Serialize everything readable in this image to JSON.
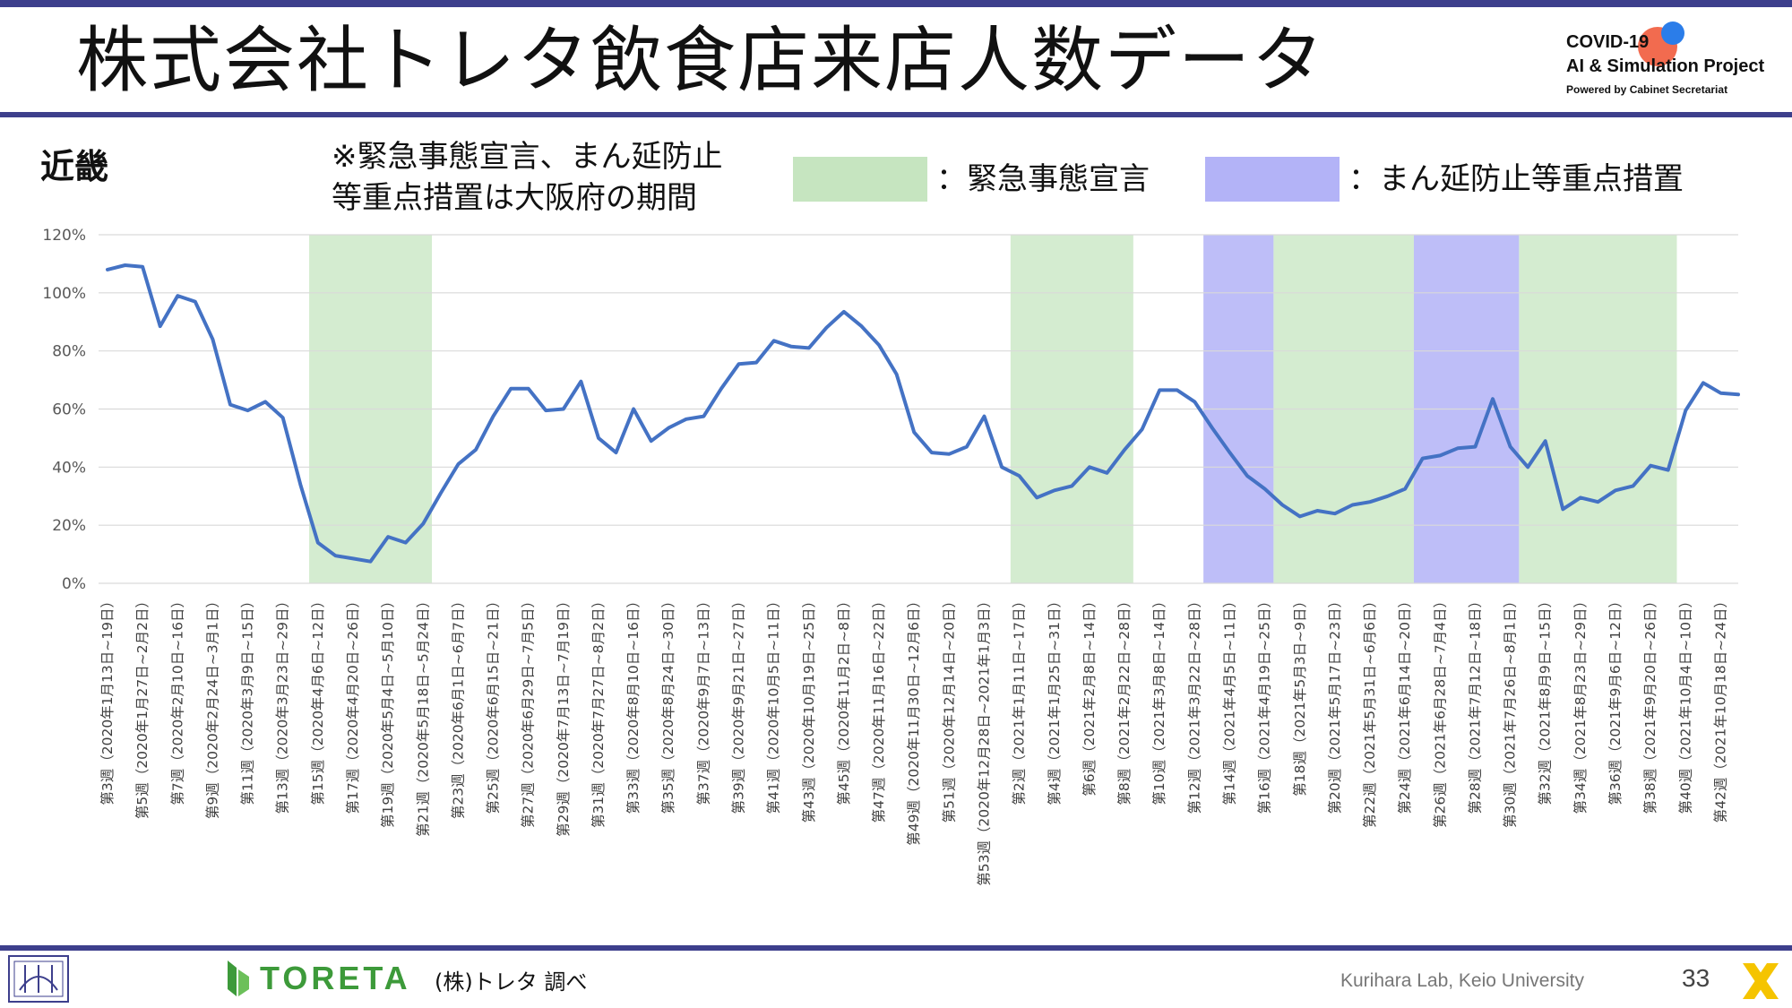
{
  "header": {
    "title": "株式会社トレタ飲食店来店人数データ",
    "logo_line1": "COVID-19",
    "logo_line2": "AI & Simulation Project",
    "logo_line3": "Powered by Cabinet Secretariat"
  },
  "region": "近畿",
  "note_line1": "※緊急事態宣言、まん延防止",
  "note_line2": "等重点措置は大阪府の期間",
  "legend": [
    {
      "label": "：緊急事態宣言",
      "color": "#c6e5c0"
    },
    {
      "label": "：まん延防止等重点措置",
      "color": "#b3b3f7"
    }
  ],
  "footer": {
    "brand": "TORETA",
    "source": "(株)トレタ 調べ",
    "lab": "Kurihara Lab, Keio University",
    "page": "33"
  },
  "colors": {
    "band": "#3d3f8c",
    "line": "#4472c4",
    "emergency": "#c6e5c0",
    "priority": "#b3b3f7"
  },
  "chart_data": {
    "type": "line",
    "ylim": [
      0,
      120
    ],
    "y_ticks": [
      "0%",
      "20%",
      "40%",
      "60%",
      "80%",
      "100%",
      "120%"
    ],
    "grid": true,
    "x_tick_labels": [
      "第3週（2020年1月13日~19日）",
      "第5週（2020年1月27日~2月2日）",
      "第7週（2020年2月10日~16日）",
      "第9週（2020年2月24日~3月1日）",
      "第11週（2020年3月9日~15日）",
      "第13週（2020年3月23日~29日）",
      "第15週（2020年4月6日~12日）",
      "第17週（2020年4月20日~26日）",
      "第19週（2020年5月4日~5月10日）",
      "第21週（2020年5月18日~5月24日）",
      "第23週（2020年6月1日~6月7日）",
      "第25週（2020年6月15日~21日）",
      "第27週（2020年6月29日~7月5日）",
      "第29週（2020年7月13日~7月19日）",
      "第31週（2020年7月27日~8月2日）",
      "第33週（2020年8月10日~16日）",
      "第35週（2020年8月24日~30日）",
      "第37週（2020年9月7日~13日）",
      "第39週（2020年9月21日~27日）",
      "第41週（2020年10月5日~11日）",
      "第43週（2020年10月19日~25日）",
      "第45週（2020年11月2日~8日）",
      "第47週（2020年11月16日~22日）",
      "第49週（2020年11月30日~12月6日）",
      "第51週（2020年12月14日~20日）",
      "第53週（2020年12月28日~2021年1月3日）",
      "第2週（2021年1月11日~17日）",
      "第4週（2021年1月25日~31日）",
      "第6週（2021年2月8日~14日）",
      "第8週（2021年2月22日~28日）",
      "第10週（2021年3月8日~14日）",
      "第12週（2021年3月22日~28日）",
      "第14週（2021年4月5日~11日）",
      "第16週（2021年4月19日~25日）",
      "第18週（2021年5月3日~9日）",
      "第20週（2021年5月17日~23日）",
      "第22週（2021年5月31日~6月6日）",
      "第24週（2021年6月14日~20日）",
      "第26週（2021年6月28日~7月4日）",
      "第28週（2021年7月12日~18日）",
      "第30週（2021年7月26日~8月1日）",
      "第32週（2021年8月9日~15日）",
      "第34週（2021年8月23日~29日）",
      "第36週（2021年9月6日~12日）",
      "第38週（2021年9月20日~26日）",
      "第40週（2021年10月4日~10日）",
      "第42週（2021年10月18日~24日）"
    ],
    "series": [
      {
        "values": [
          108,
          109.5,
          109,
          88.5,
          99,
          97,
          84,
          61.5,
          59.5,
          62.5,
          57,
          34,
          14,
          9.5,
          8.5,
          7.5,
          16,
          14,
          20.5,
          31,
          41,
          46,
          57.5,
          67,
          67,
          59.5,
          60,
          69.5,
          50,
          45,
          60,
          49,
          53.5,
          56.5,
          57.5,
          67,
          75.5,
          76,
          83.5,
          81.5,
          81,
          88,
          93.5,
          88.5,
          82,
          72,
          52,
          45,
          44.5,
          47,
          57.5,
          40,
          37,
          29.5,
          32,
          33.5,
          40,
          38,
          46,
          53,
          66.5,
          66.5,
          62.5,
          53.5,
          45,
          37,
          32.5,
          27,
          23,
          25,
          24,
          27,
          28,
          30,
          32.5,
          43,
          44,
          46.5,
          47,
          63.5,
          47,
          40,
          49,
          25.5,
          29.5,
          28,
          32,
          33.5,
          40.5,
          39,
          59.5,
          69,
          65.5,
          65
        ]
      }
    ],
    "shaded_periods": [
      {
        "type": "emergency",
        "start_index": 12,
        "end_index": 18
      },
      {
        "type": "emergency",
        "start_index": 52,
        "end_index": 58
      },
      {
        "type": "priority",
        "start_index": 63,
        "end_index": 66
      },
      {
        "type": "emergency",
        "start_index": 67,
        "end_index": 74
      },
      {
        "type": "priority",
        "start_index": 75,
        "end_index": 80
      },
      {
        "type": "emergency",
        "start_index": 81,
        "end_index": 89
      }
    ]
  }
}
